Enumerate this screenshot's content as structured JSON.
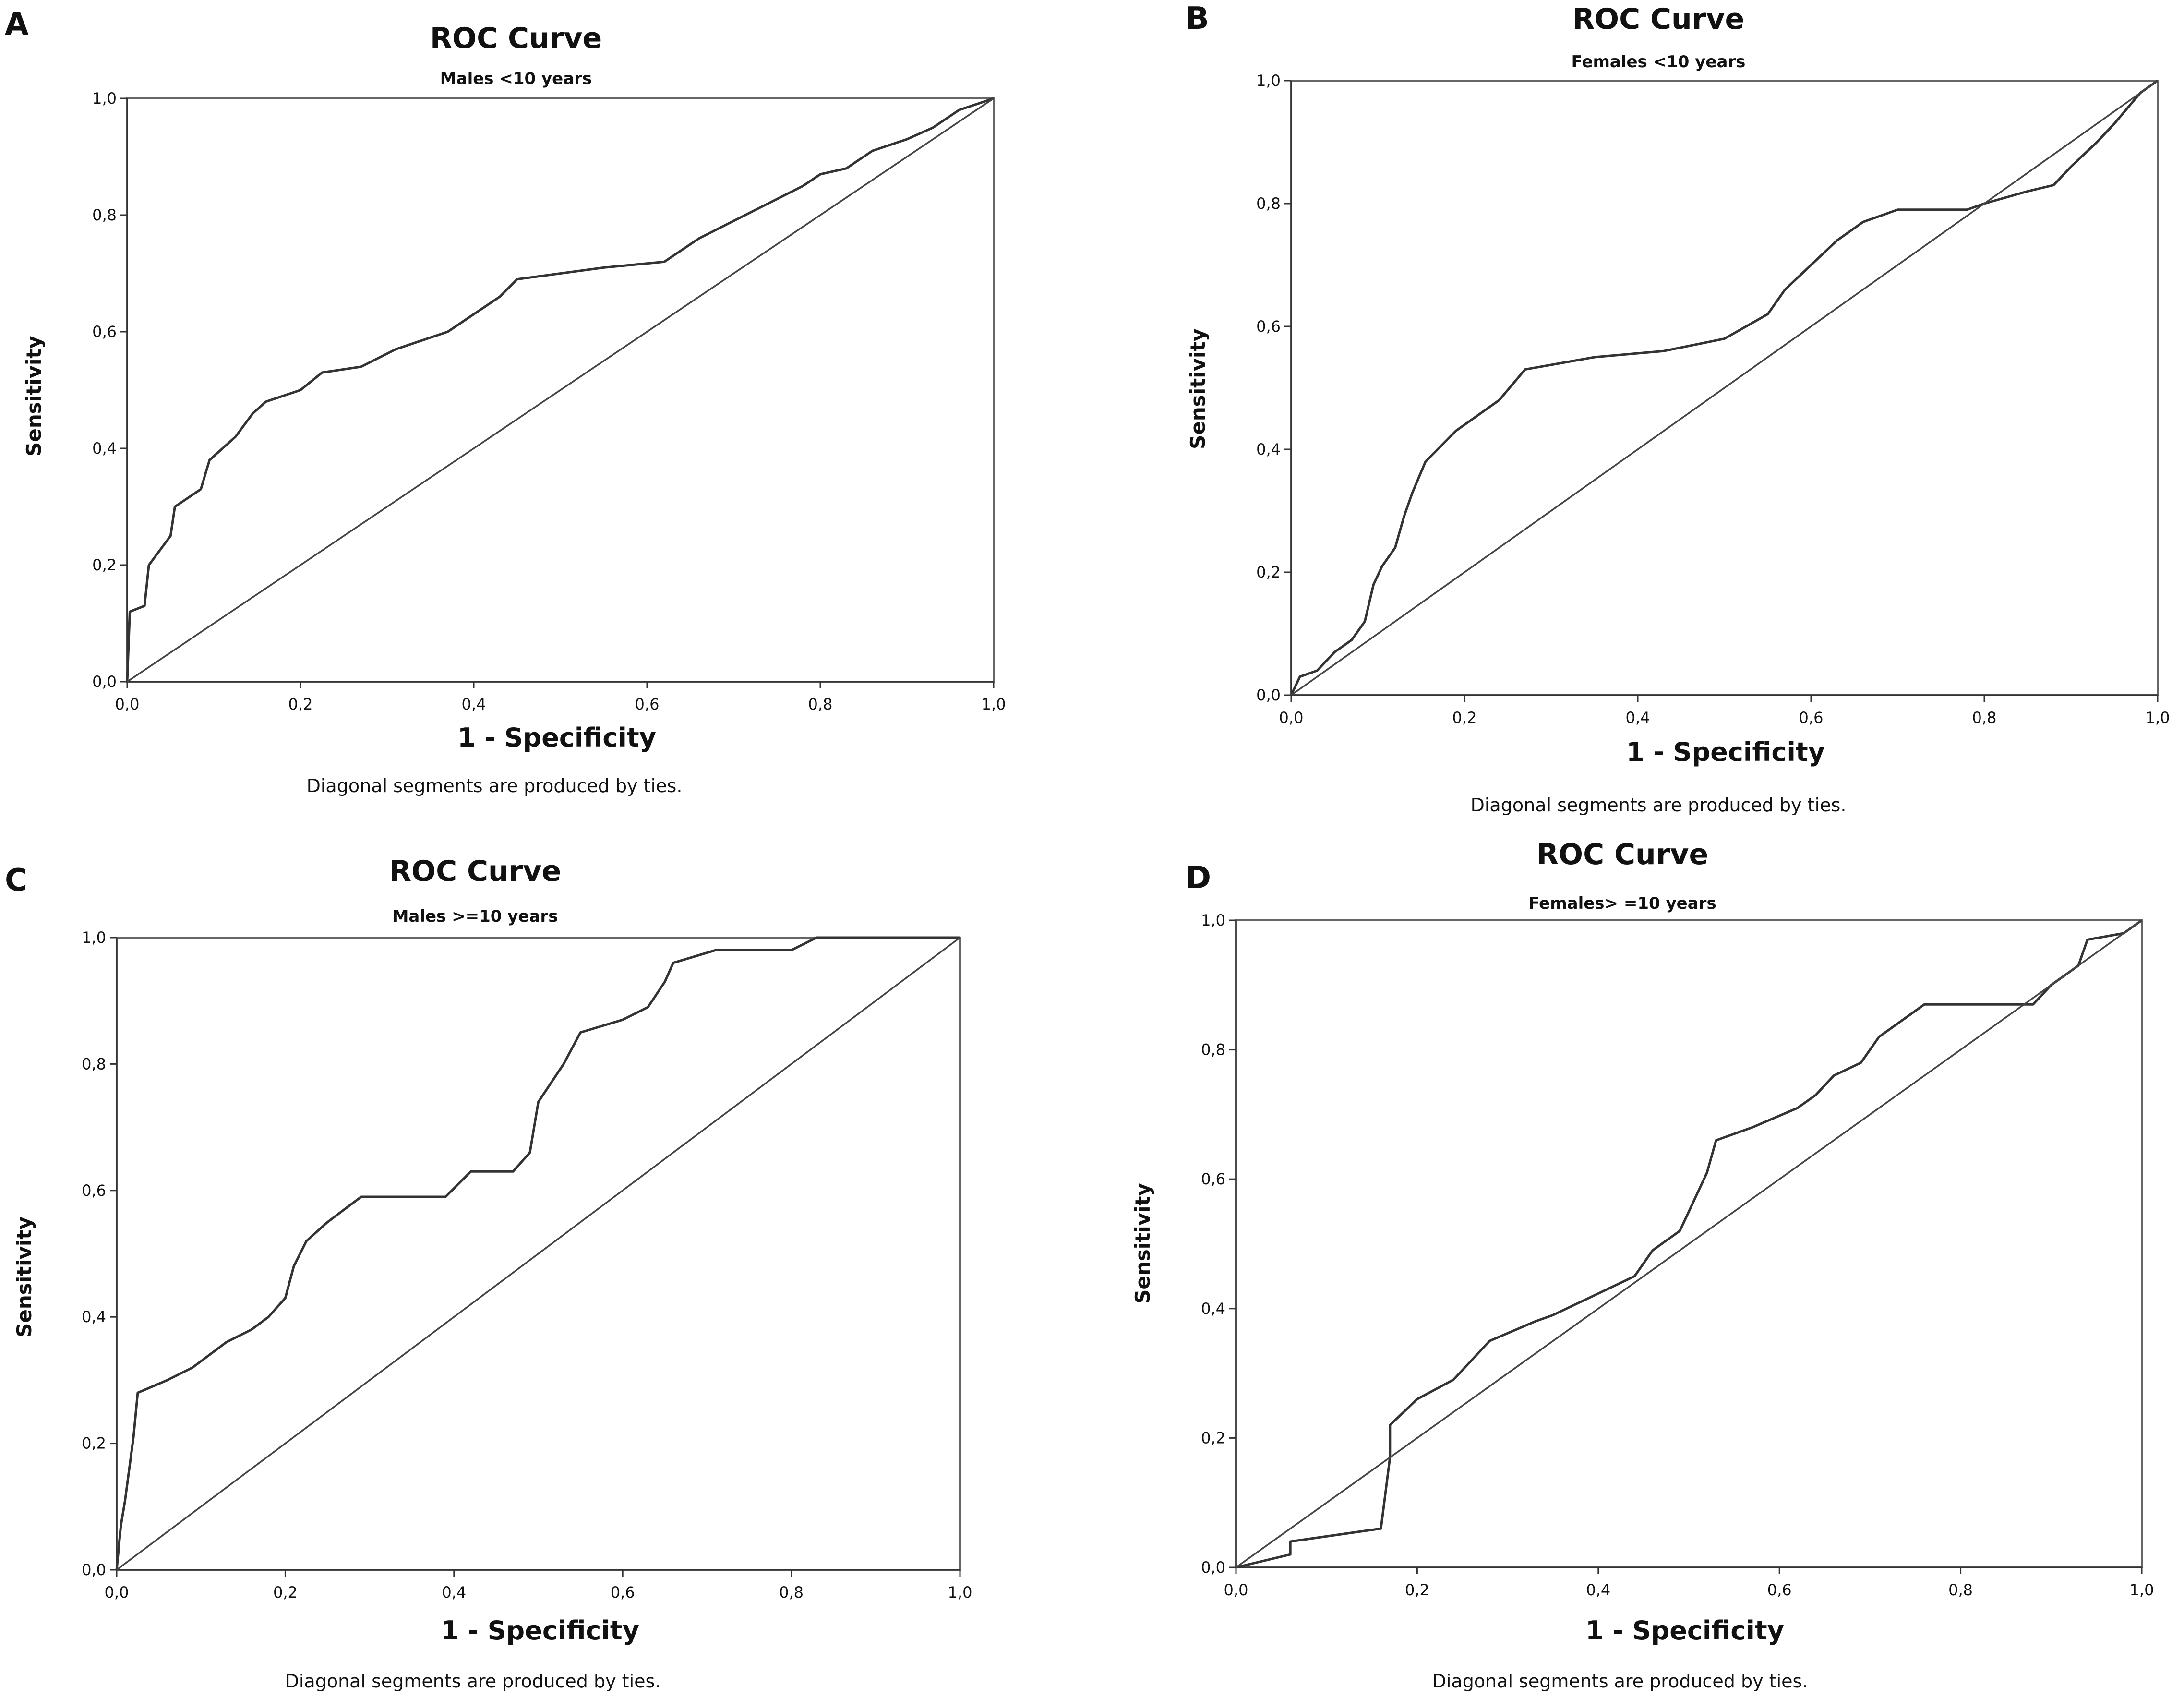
{
  "chart_data": [
    {
      "panel": "A",
      "type": "line",
      "title": "ROC Curve",
      "subtitle": "Males <10 years",
      "xlabel": "1 - Specificity",
      "ylabel": "Sensitivity",
      "footnote": "Diagonal segments are produced by ties.",
      "xlim": [
        0,
        1
      ],
      "ylim": [
        0,
        1
      ],
      "ticks": [
        "0,0",
        "0,2",
        "0,4",
        "0,6",
        "0,8",
        "1,0"
      ],
      "series": [
        {
          "name": "ROC",
          "points": [
            [
              0,
              0
            ],
            [
              0.003,
              0.12
            ],
            [
              0.02,
              0.13
            ],
            [
              0.025,
              0.2
            ],
            [
              0.035,
              0.22
            ],
            [
              0.05,
              0.25
            ],
            [
              0.055,
              0.3
            ],
            [
              0.075,
              0.32
            ],
            [
              0.085,
              0.33
            ],
            [
              0.095,
              0.38
            ],
            [
              0.11,
              0.4
            ],
            [
              0.125,
              0.42
            ],
            [
              0.145,
              0.46
            ],
            [
              0.16,
              0.48
            ],
            [
              0.2,
              0.5
            ],
            [
              0.225,
              0.53
            ],
            [
              0.27,
              0.54
            ],
            [
              0.31,
              0.57
            ],
            [
              0.37,
              0.6
            ],
            [
              0.4,
              0.63
            ],
            [
              0.43,
              0.66
            ],
            [
              0.45,
              0.69
            ],
            [
              0.55,
              0.71
            ],
            [
              0.62,
              0.72
            ],
            [
              0.66,
              0.76
            ],
            [
              0.7,
              0.79
            ],
            [
              0.74,
              0.82
            ],
            [
              0.78,
              0.85
            ],
            [
              0.8,
              0.87
            ],
            [
              0.83,
              0.88
            ],
            [
              0.86,
              0.91
            ],
            [
              0.9,
              0.93
            ],
            [
              0.93,
              0.95
            ],
            [
              0.96,
              0.98
            ],
            [
              0.98,
              0.99
            ],
            [
              1,
              1
            ]
          ]
        },
        {
          "name": "Reference line",
          "points": [
            [
              0,
              0
            ],
            [
              1,
              1
            ]
          ]
        }
      ]
    },
    {
      "panel": "B",
      "type": "line",
      "title": "ROC Curve",
      "subtitle": "Females <10 years",
      "xlabel": "1 - Specificity",
      "ylabel": "Sensitivity",
      "footnote": "Diagonal segments are produced by ties.",
      "xlim": [
        0,
        1
      ],
      "ylim": [
        0,
        1
      ],
      "ticks": [
        "0,0",
        "0,2",
        "0,4",
        "0,6",
        "0,8",
        "1,0"
      ],
      "series": [
        {
          "name": "ROC",
          "points": [
            [
              0,
              0
            ],
            [
              0.01,
              0.03
            ],
            [
              0.03,
              0.04
            ],
            [
              0.05,
              0.07
            ],
            [
              0.07,
              0.09
            ],
            [
              0.085,
              0.12
            ],
            [
              0.095,
              0.18
            ],
            [
              0.105,
              0.21
            ],
            [
              0.12,
              0.24
            ],
            [
              0.13,
              0.29
            ],
            [
              0.14,
              0.33
            ],
            [
              0.155,
              0.38
            ],
            [
              0.19,
              0.43
            ],
            [
              0.22,
              0.46
            ],
            [
              0.24,
              0.48
            ],
            [
              0.27,
              0.53
            ],
            [
              0.35,
              0.55
            ],
            [
              0.43,
              0.56
            ],
            [
              0.5,
              0.58
            ],
            [
              0.55,
              0.62
            ],
            [
              0.57,
              0.66
            ],
            [
              0.6,
              0.7
            ],
            [
              0.63,
              0.74
            ],
            [
              0.66,
              0.77
            ],
            [
              0.7,
              0.79
            ],
            [
              0.78,
              0.79
            ],
            [
              0.8,
              0.8
            ],
            [
              0.85,
              0.82
            ],
            [
              0.88,
              0.83
            ],
            [
              0.9,
              0.86
            ],
            [
              0.93,
              0.9
            ],
            [
              0.95,
              0.93
            ],
            [
              0.98,
              0.98
            ],
            [
              1,
              1
            ]
          ]
        },
        {
          "name": "Reference line",
          "points": [
            [
              0,
              0
            ],
            [
              1,
              1
            ]
          ]
        }
      ]
    },
    {
      "panel": "C",
      "type": "line",
      "title": "ROC Curve",
      "subtitle": "Males >=10 years",
      "xlabel": "1 - Specificity",
      "ylabel": "Sensitivity",
      "footnote": "Diagonal segments are produced by ties.",
      "xlim": [
        0,
        1
      ],
      "ylim": [
        0,
        1
      ],
      "ticks": [
        "0,0",
        "0,2",
        "0,4",
        "0,6",
        "0,8",
        "1,0"
      ],
      "series": [
        {
          "name": "ROC",
          "points": [
            [
              0,
              0
            ],
            [
              0.005,
              0.07
            ],
            [
              0.01,
              0.11
            ],
            [
              0.02,
              0.21
            ],
            [
              0.025,
              0.28
            ],
            [
              0.06,
              0.3
            ],
            [
              0.09,
              0.32
            ],
            [
              0.11,
              0.34
            ],
            [
              0.13,
              0.36
            ],
            [
              0.16,
              0.38
            ],
            [
              0.18,
              0.4
            ],
            [
              0.2,
              0.43
            ],
            [
              0.21,
              0.48
            ],
            [
              0.225,
              0.52
            ],
            [
              0.25,
              0.55
            ],
            [
              0.27,
              0.57
            ],
            [
              0.29,
              0.59
            ],
            [
              0.39,
              0.59
            ],
            [
              0.42,
              0.63
            ],
            [
              0.47,
              0.63
            ],
            [
              0.49,
              0.66
            ],
            [
              0.5,
              0.74
            ],
            [
              0.53,
              0.8
            ],
            [
              0.55,
              0.85
            ],
            [
              0.6,
              0.87
            ],
            [
              0.63,
              0.89
            ],
            [
              0.65,
              0.93
            ],
            [
              0.66,
              0.96
            ],
            [
              0.71,
              0.98
            ],
            [
              0.8,
              0.98
            ],
            [
              0.83,
              1
            ],
            [
              1,
              1
            ]
          ]
        },
        {
          "name": "Reference line",
          "points": [
            [
              0,
              0
            ],
            [
              1,
              1
            ]
          ]
        }
      ]
    },
    {
      "panel": "D",
      "type": "line",
      "title": "ROC Curve",
      "subtitle": "Females> =10 years",
      "xlabel": "1 - Specificity",
      "ylabel": "Sensitivity",
      "footnote": "Diagonal segments are produced by ties.",
      "xlim": [
        0,
        1
      ],
      "ylim": [
        0,
        1
      ],
      "ticks": [
        "0,0",
        "0,2",
        "0,4",
        "0,6",
        "0,8",
        "1,0"
      ],
      "series": [
        {
          "name": "ROC",
          "points": [
            [
              0,
              0
            ],
            [
              0.06,
              0.02
            ],
            [
              0.06,
              0.04
            ],
            [
              0.16,
              0.06
            ],
            [
              0.17,
              0.17
            ],
            [
              0.17,
              0.22
            ],
            [
              0.2,
              0.26
            ],
            [
              0.24,
              0.29
            ],
            [
              0.28,
              0.35
            ],
            [
              0.33,
              0.38
            ],
            [
              0.35,
              0.39
            ],
            [
              0.38,
              0.41
            ],
            [
              0.41,
              0.43
            ],
            [
              0.44,
              0.45
            ],
            [
              0.46,
              0.49
            ],
            [
              0.49,
              0.52
            ],
            [
              0.5,
              0.55
            ],
            [
              0.52,
              0.61
            ],
            [
              0.53,
              0.66
            ],
            [
              0.57,
              0.68
            ],
            [
              0.62,
              0.71
            ],
            [
              0.64,
              0.73
            ],
            [
              0.66,
              0.76
            ],
            [
              0.69,
              0.78
            ],
            [
              0.71,
              0.82
            ],
            [
              0.74,
              0.85
            ],
            [
              0.76,
              0.87
            ],
            [
              0.88,
              0.87
            ],
            [
              0.9,
              0.9
            ],
            [
              0.93,
              0.93
            ],
            [
              0.94,
              0.97
            ],
            [
              0.98,
              0.98
            ],
            [
              1,
              1
            ]
          ]
        },
        {
          "name": "Reference line",
          "points": [
            [
              0,
              0
            ],
            [
              1,
              1
            ]
          ]
        }
      ]
    }
  ]
}
